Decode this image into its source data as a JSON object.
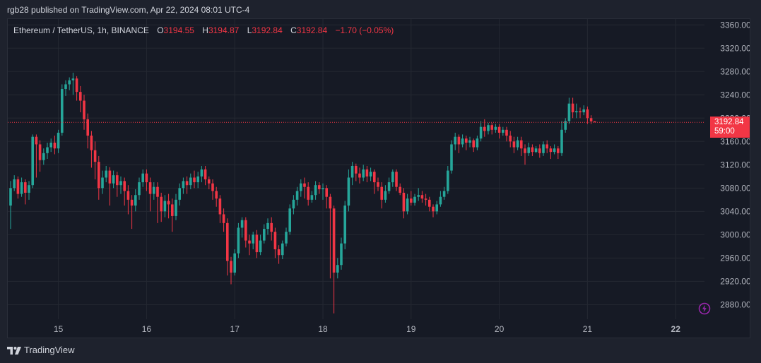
{
  "header": {
    "publisher_line": "rgb28 published on TradingView.com, Apr 22, 2024 08:01 UTC-4"
  },
  "legend": {
    "symbol": "Ethereum / TetherUS, 1h, BINANCE",
    "o_label": "O",
    "o_value": "3194.55",
    "h_label": "H",
    "h_value": "3194.87",
    "l_label": "L",
    "l_value": "3192.84",
    "c_label": "C",
    "c_value": "3192.84",
    "change": "−1.70 (−0.05%)"
  },
  "price_tag": {
    "price": "3192.84",
    "countdown": "59:00"
  },
  "footer": {
    "brand": "TradingView"
  },
  "colors": {
    "up": "#26a69a",
    "down": "#f23645",
    "background": "#161a25",
    "grid": "#242832",
    "axis_text": "#b2b5be",
    "bolt": "#9c27b0"
  },
  "icons": {
    "bolt": "lightning-bolt-icon",
    "logo": "tradingview-logo-icon"
  },
  "chart_data": {
    "type": "candlestick",
    "title": "Ethereum / TetherUS, 1h, BINANCE",
    "xlabel": "",
    "ylabel": "",
    "ylim": [
      2855,
      3370
    ],
    "grid": true,
    "current_price": 3192.84,
    "y_ticks": [
      "3360.00",
      "3320.00",
      "3280.00",
      "3240.00",
      "3200.00",
      "3160.00",
      "3120.00",
      "3080.00",
      "3040.00",
      "3000.00",
      "2960.00",
      "2920.00",
      "2880.00"
    ],
    "x_ticks": [
      {
        "label": "15",
        "index": 13
      },
      {
        "label": "16",
        "index": 37
      },
      {
        "label": "17",
        "index": 61
      },
      {
        "label": "18",
        "index": 85
      },
      {
        "label": "19",
        "index": 109
      },
      {
        "label": "20",
        "index": 133
      },
      {
        "label": "21",
        "index": 157
      },
      {
        "label": "22",
        "index": 181
      }
    ],
    "candles": [
      [
        3050,
        3080,
        3010,
        3092
      ],
      [
        3080,
        3095,
        3075,
        3102
      ],
      [
        3095,
        3070,
        3062,
        3100
      ],
      [
        3070,
        3090,
        3065,
        3098
      ],
      [
        3090,
        3072,
        3052,
        3095
      ],
      [
        3072,
        3085,
        3060,
        3092
      ],
      [
        3085,
        3168,
        3080,
        3172
      ],
      [
        3168,
        3155,
        3098,
        3172
      ],
      [
        3155,
        3128,
        3108,
        3162
      ],
      [
        3128,
        3140,
        3120,
        3148
      ],
      [
        3140,
        3150,
        3130,
        3158
      ],
      [
        3150,
        3158,
        3142,
        3165
      ],
      [
        3158,
        3148,
        3138,
        3170
      ],
      [
        3148,
        3175,
        3140,
        3180
      ],
      [
        3175,
        3250,
        3170,
        3258
      ],
      [
        3250,
        3258,
        3238,
        3265
      ],
      [
        3258,
        3265,
        3248,
        3270
      ],
      [
        3265,
        3268,
        3240,
        3278
      ],
      [
        3268,
        3245,
        3230,
        3272
      ],
      [
        3245,
        3230,
        3210,
        3255
      ],
      [
        3230,
        3198,
        3180,
        3240
      ],
      [
        3198,
        3170,
        3148,
        3208
      ],
      [
        3170,
        3145,
        3115,
        3178
      ],
      [
        3145,
        3125,
        3095,
        3160
      ],
      [
        3125,
        3080,
        3060,
        3135
      ],
      [
        3080,
        3098,
        3070,
        3110
      ],
      [
        3098,
        3110,
        3090,
        3118
      ],
      [
        3110,
        3088,
        3050,
        3116
      ],
      [
        3088,
        3102,
        3080,
        3110
      ],
      [
        3102,
        3085,
        3065,
        3108
      ],
      [
        3085,
        3092,
        3070,
        3100
      ],
      [
        3092,
        3075,
        3050,
        3098
      ],
      [
        3075,
        3060,
        3035,
        3085
      ],
      [
        3060,
        3050,
        3010,
        3068
      ],
      [
        3050,
        3068,
        3040,
        3078
      ],
      [
        3068,
        3090,
        3060,
        3098
      ],
      [
        3090,
        3105,
        3082,
        3112
      ],
      [
        3105,
        3090,
        3075,
        3112
      ],
      [
        3090,
        3070,
        3040,
        3098
      ],
      [
        3070,
        3082,
        3060,
        3090
      ],
      [
        3082,
        3065,
        3020,
        3090
      ],
      [
        3065,
        3040,
        3022,
        3072
      ],
      [
        3040,
        3058,
        3030,
        3068
      ],
      [
        3058,
        3052,
        3028,
        3070
      ],
      [
        3052,
        3032,
        3005,
        3062
      ],
      [
        3032,
        3060,
        3025,
        3070
      ],
      [
        3060,
        3080,
        3050,
        3088
      ],
      [
        3080,
        3092,
        3070,
        3098
      ],
      [
        3092,
        3085,
        3070,
        3100
      ],
      [
        3085,
        3098,
        3078,
        3105
      ],
      [
        3098,
        3090,
        3080,
        3110
      ],
      [
        3090,
        3100,
        3080,
        3108
      ],
      [
        3100,
        3112,
        3090,
        3118
      ],
      [
        3112,
        3095,
        3085,
        3118
      ],
      [
        3095,
        3088,
        3078,
        3100
      ],
      [
        3088,
        3075,
        3060,
        3095
      ],
      [
        3075,
        3062,
        3048,
        3082
      ],
      [
        3062,
        3035,
        3020,
        3068
      ],
      [
        3035,
        3020,
        3005,
        3045
      ],
      [
        3020,
        2955,
        2930,
        3028
      ],
      [
        2955,
        2935,
        2915,
        2962
      ],
      [
        2935,
        2968,
        2930,
        2975
      ],
      [
        2968,
        3012,
        2960,
        3020
      ],
      [
        3012,
        3025,
        2995,
        3030
      ],
      [
        3025,
        2990,
        2978,
        3030
      ],
      [
        2990,
        2985,
        2965,
        3000
      ],
      [
        2985,
        3000,
        2975,
        3005
      ],
      [
        3000,
        2970,
        2960,
        3008
      ],
      [
        2970,
        2990,
        2965,
        3000
      ],
      [
        2990,
        3010,
        2985,
        3018
      ],
      [
        3010,
        3020,
        3000,
        3028
      ],
      [
        3020,
        3005,
        2990,
        3030
      ],
      [
        3005,
        2975,
        2960,
        3012
      ],
      [
        2975,
        2965,
        2950,
        2982
      ],
      [
        2965,
        2985,
        2958,
        2990
      ],
      [
        2985,
        3005,
        2980,
        3012
      ],
      [
        3005,
        3045,
        3000,
        3052
      ],
      [
        3045,
        3060,
        3035,
        3068
      ],
      [
        3060,
        3075,
        3050,
        3082
      ],
      [
        3075,
        3088,
        3065,
        3095
      ],
      [
        3088,
        3082,
        3062,
        3098
      ],
      [
        3082,
        3060,
        3050,
        3090
      ],
      [
        3060,
        3068,
        3055,
        3075
      ],
      [
        3068,
        3085,
        3060,
        3092
      ],
      [
        3085,
        3078,
        3070,
        3090
      ],
      [
        3078,
        3080,
        3060,
        3088
      ],
      [
        3080,
        3065,
        3045,
        3085
      ],
      [
        3065,
        3045,
        2925,
        3070
      ],
      [
        3045,
        2935,
        2865,
        3050
      ],
      [
        2935,
        2948,
        2925,
        2960
      ],
      [
        2948,
        2985,
        2940,
        2995
      ],
      [
        2985,
        3050,
        2975,
        3058
      ],
      [
        3050,
        3098,
        3040,
        3112
      ],
      [
        3098,
        3118,
        3085,
        3125
      ],
      [
        3118,
        3105,
        3092,
        3122
      ],
      [
        3105,
        3098,
        3088,
        3115
      ],
      [
        3098,
        3112,
        3092,
        3120
      ],
      [
        3112,
        3100,
        3090,
        3118
      ],
      [
        3100,
        3108,
        3092,
        3115
      ],
      [
        3108,
        3090,
        3070,
        3112
      ],
      [
        3090,
        3082,
        3075,
        3098
      ],
      [
        3082,
        3060,
        3045,
        3090
      ],
      [
        3060,
        3075,
        3055,
        3085
      ],
      [
        3075,
        3090,
        3070,
        3098
      ],
      [
        3090,
        3108,
        3082,
        3112
      ],
      [
        3108,
        3082,
        3075,
        3112
      ],
      [
        3082,
        3072,
        3068,
        3088
      ],
      [
        3072,
        3040,
        3028,
        3080
      ],
      [
        3040,
        3062,
        3035,
        3070
      ],
      [
        3062,
        3055,
        3050,
        3075
      ],
      [
        3055,
        3065,
        3050,
        3070
      ],
      [
        3065,
        3068,
        3058,
        3080
      ],
      [
        3068,
        3062,
        3055,
        3075
      ],
      [
        3062,
        3060,
        3050,
        3070
      ],
      [
        3060,
        3048,
        3040,
        3065
      ],
      [
        3048,
        3040,
        3030,
        3052
      ],
      [
        3040,
        3052,
        3035,
        3058
      ],
      [
        3052,
        3065,
        3048,
        3075
      ],
      [
        3065,
        3075,
        3060,
        3082
      ],
      [
        3075,
        3110,
        3070,
        3118
      ],
      [
        3110,
        3155,
        3105,
        3162
      ],
      [
        3155,
        3168,
        3145,
        3175
      ],
      [
        3168,
        3155,
        3140,
        3172
      ],
      [
        3155,
        3165,
        3150,
        3172
      ],
      [
        3165,
        3158,
        3145,
        3170
      ],
      [
        3158,
        3162,
        3150,
        3168
      ],
      [
        3162,
        3150,
        3142,
        3165
      ],
      [
        3150,
        3165,
        3145,
        3170
      ],
      [
        3165,
        3185,
        3160,
        3195
      ],
      [
        3185,
        3178,
        3168,
        3198
      ],
      [
        3178,
        3188,
        3172,
        3192
      ],
      [
        3188,
        3180,
        3172,
        3192
      ],
      [
        3180,
        3185,
        3175,
        3190
      ],
      [
        3185,
        3175,
        3165,
        3190
      ],
      [
        3175,
        3180,
        3170,
        3185
      ],
      [
        3180,
        3170,
        3160,
        3185
      ],
      [
        3170,
        3160,
        3150,
        3178
      ],
      [
        3160,
        3150,
        3140,
        3168
      ],
      [
        3150,
        3162,
        3145,
        3168
      ],
      [
        3162,
        3148,
        3135,
        3168
      ],
      [
        3148,
        3140,
        3120,
        3155
      ],
      [
        3140,
        3150,
        3135,
        3158
      ],
      [
        3150,
        3142,
        3135,
        3155
      ],
      [
        3142,
        3148,
        3140,
        3152
      ],
      [
        3148,
        3140,
        3132,
        3155
      ],
      [
        3140,
        3155,
        3135,
        3160
      ],
      [
        3155,
        3148,
        3140,
        3162
      ],
      [
        3148,
        3142,
        3130,
        3152
      ],
      [
        3142,
        3148,
        3138,
        3155
      ],
      [
        3148,
        3140,
        3130,
        3152
      ],
      [
        3140,
        3180,
        3135,
        3195
      ],
      [
        3180,
        3195,
        3175,
        3200
      ],
      [
        3195,
        3225,
        3190,
        3235
      ],
      [
        3225,
        3210,
        3200,
        3235
      ],
      [
        3210,
        3212,
        3200,
        3225
      ],
      [
        3212,
        3210,
        3200,
        3218
      ],
      [
        3210,
        3215,
        3205,
        3222
      ],
      [
        3215,
        3200,
        3190,
        3220
      ],
      [
        3200,
        3194.55,
        3190,
        3205
      ],
      [
        3194.55,
        3192.84,
        3192.84,
        3194.87
      ]
    ]
  }
}
